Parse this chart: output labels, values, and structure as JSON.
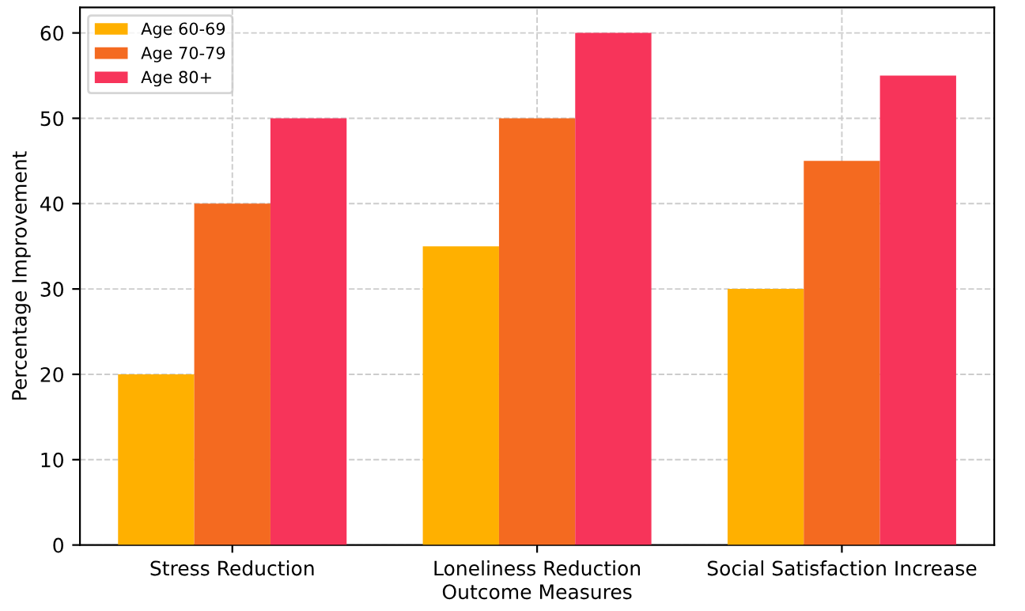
{
  "chart_data": {
    "type": "bar",
    "xlabel": "Outcome Measures",
    "ylabel": "Percentage Improvement",
    "categories": [
      "Stress Reduction",
      "Loneliness Reduction",
      "Social Satisfaction Increase"
    ],
    "series": [
      {
        "name": "Age 60-69",
        "color": "#ffb000",
        "values": [
          20,
          35,
          30
        ]
      },
      {
        "name": "Age 70-79",
        "color": "#f46a20",
        "values": [
          40,
          50,
          45
        ]
      },
      {
        "name": "Age 80+",
        "color": "#f7345a",
        "values": [
          50,
          60,
          55
        ]
      }
    ],
    "ylim": [
      0,
      63
    ],
    "yticks": [
      0,
      10,
      20,
      30,
      40,
      50,
      60
    ],
    "grid": true,
    "legend": "top left"
  }
}
